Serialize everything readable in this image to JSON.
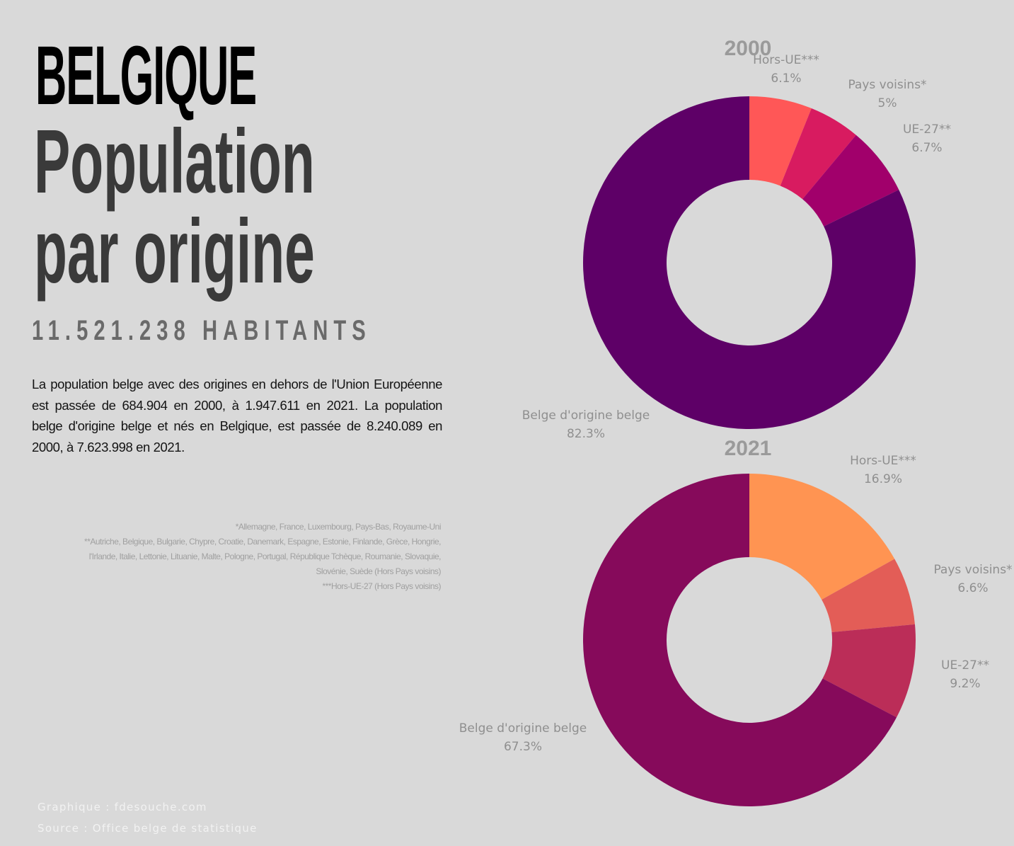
{
  "header": {
    "country": "BELGIQUE",
    "title_line1": "Population",
    "title_line2": "par origine",
    "inhabitants": "11.521.238 HABITANTS"
  },
  "description": "La population belge avec des origines en dehors de l'Union Européenne est passée de 684.904 en 2000, à 1.947.611 en 2021. La population belge d'origine belge et nés en Belgique, est passée de 8.240.089 en 2000, à 7.623.998 en 2021.",
  "footnotes": [
    "*Allemagne, France, Luxembourg, Pays-Bas, Royaume-Uni",
    "**Autriche, Belgique, Bulgarie, Chypre, Croatie, Danemark, Espagne, Estonie, Finlande, Grèce, Hongrie,",
    "l'Irlande, Italie, Lettonie, Lituanie, Malte, Pologne, Portugal, République Tchèque, Roumanie, Slovaquie,",
    "Slovénie, Suède (Hors Pays voisins)",
    "***Hors-UE-27 (Hors Pays voisins)"
  ],
  "credits": {
    "graphic": "Graphique : fdesouche.com",
    "source": "Source : Office belge de statistique"
  },
  "chart_data": [
    {
      "type": "pie",
      "title": "2000",
      "labels": [
        "Hors-UE***",
        "Pays voisins*",
        "UE-27**",
        "Belge d'origine belge"
      ],
      "value_labels": [
        "6.1%",
        "5%",
        "6.7%",
        "82.3%"
      ],
      "values": [
        6.1,
        5,
        6.7,
        82.3
      ],
      "colors": [
        "#ff5757",
        "#d81b60",
        "#a1006b",
        "#5e0067"
      ]
    },
    {
      "type": "pie",
      "title": "2021",
      "labels": [
        "Hors-UE***",
        "Pays voisins*",
        "UE-27**",
        "Belge d'origine belge"
      ],
      "value_labels": [
        "16.9%",
        "6.6%",
        "9.2%",
        "67.3%"
      ],
      "values": [
        16.9,
        6.6,
        9.2,
        67.3
      ],
      "colors": [
        "#ff9452",
        "#e35d57",
        "#bb2d58",
        "#860a5b"
      ]
    }
  ]
}
